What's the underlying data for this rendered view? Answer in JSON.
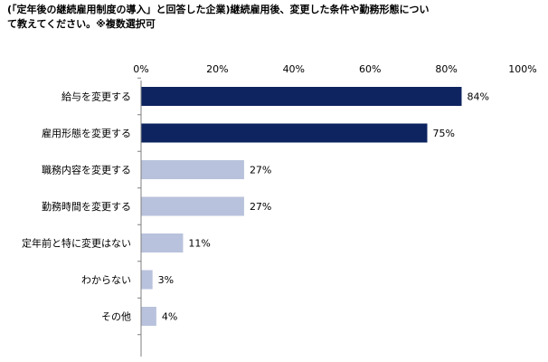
{
  "title": {
    "line1": "(「定年後の継続雇用制度の導入」と回答した企業)継続雇用後、変更した条件や勤務形態につい",
    "line2": "て教えてください。※複数選択可"
  },
  "colors": {
    "highlight": "#0e2460",
    "normal": "#b8c2dc",
    "axis": "#7f7f7f"
  },
  "chart_data": {
    "type": "bar",
    "orientation": "horizontal",
    "categories": [
      "給与を変更する",
      "雇用形態を変更する",
      "職務内容を変更する",
      "勤務時間を変更する",
      "定年前と特に変更はない",
      "わからない",
      "その他"
    ],
    "values": [
      84,
      75,
      27,
      27,
      11,
      3,
      4
    ],
    "value_labels": [
      "84%",
      "75%",
      "27%",
      "27%",
      "11%",
      "3%",
      "4%"
    ],
    "highlight": [
      true,
      true,
      false,
      false,
      false,
      false,
      false
    ],
    "xlim": [
      0,
      100
    ],
    "xticks": [
      "0%",
      "20%",
      "40%",
      "60%",
      "80%",
      "100%"
    ],
    "grid": false,
    "legend": "none"
  }
}
